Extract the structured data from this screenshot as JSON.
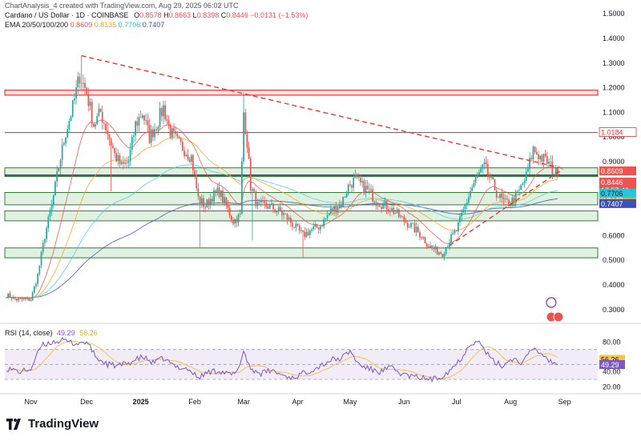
{
  "header": {
    "credit": "ChartAnalysis_4 created with TradingView.com, Aug 29, 2025 06:02 UTC",
    "symbol": "Cardano / US Dollar · 1D · COINBASE",
    "ohlc": {
      "open_label": "O",
      "open": "0.8578",
      "high_label": "H",
      "high": "0.8663",
      "low_label": "L",
      "low": "0.8398",
      "close_label": "C",
      "close": "0.8446",
      "change": "−0.0131 (−1.53%)"
    },
    "ema_label": "EMA 20/50/100/200",
    "ema_values": [
      "0.8609",
      "0.8135",
      "0.7706",
      "0.7407"
    ]
  },
  "brand": {
    "name": "TradingView"
  },
  "colors": {
    "up": "#26a69a",
    "down": "#ef5350",
    "ema20": "#ef5350",
    "ema50": "#f5a623",
    "ema100": "#4dd0e1",
    "ema200": "#3f51b5",
    "rsi": "#7e57c2",
    "rsi_ma": "#f5c542",
    "zone_fill": "#c8e6c9",
    "zone_line": "#2e7d32",
    "resistance": "#e53935"
  },
  "chart_data": [
    {
      "type": "candlestick",
      "title": "Cardano / US Dollar · 1D · COINBASE",
      "ylim": [
        0.27,
        1.53
      ],
      "y_ticks": [
        {
          "value": 1.5,
          "label": "1.5000"
        },
        {
          "value": 1.4,
          "label": "1.4000"
        },
        {
          "value": 1.3,
          "label": "1.3000"
        },
        {
          "value": 1.2,
          "label": "1.2000"
        },
        {
          "value": 1.1,
          "label": "1.1000"
        },
        {
          "value": 1.0,
          "label": "1.0000"
        },
        {
          "value": 0.9,
          "label": "0.9000"
        },
        {
          "value": 0.6,
          "label": "0.6000"
        },
        {
          "value": 0.5,
          "label": "0.5000"
        },
        {
          "value": 0.4,
          "label": "0.4000"
        },
        {
          "value": 0.3,
          "label": "0.3000"
        }
      ],
      "x_ticks": [
        {
          "day": 14,
          "label": "Nov",
          "bold": false
        },
        {
          "day": 46,
          "label": "Dec",
          "bold": false
        },
        {
          "day": 77,
          "label": "2025",
          "bold": true
        },
        {
          "day": 108,
          "label": "Feb",
          "bold": false
        },
        {
          "day": 136,
          "label": "Mar",
          "bold": false
        },
        {
          "day": 167,
          "label": "Apr",
          "bold": false
        },
        {
          "day": 197,
          "label": "May",
          "bold": false
        },
        {
          "day": 228,
          "label": "Jun",
          "bold": false
        },
        {
          "day": 258,
          "label": "Jul",
          "bold": false
        },
        {
          "day": 289,
          "label": "Aug",
          "bold": false
        },
        {
          "day": 320,
          "label": "Sep",
          "bold": false
        }
      ],
      "keypoints": [
        [
          0,
          0.36
        ],
        [
          6,
          0.34
        ],
        [
          14,
          0.34
        ],
        [
          18,
          0.44
        ],
        [
          22,
          0.6
        ],
        [
          26,
          0.72
        ],
        [
          30,
          0.88
        ],
        [
          34,
          1.02
        ],
        [
          38,
          1.12
        ],
        [
          42,
          1.25
        ],
        [
          46,
          1.18
        ],
        [
          50,
          1.05
        ],
        [
          54,
          1.1
        ],
        [
          58,
          1.02
        ],
        [
          62,
          0.93
        ],
        [
          66,
          0.88
        ],
        [
          70,
          0.9
        ],
        [
          74,
          1.05
        ],
        [
          78,
          1.1
        ],
        [
          82,
          1.0
        ],
        [
          86,
          1.05
        ],
        [
          90,
          1.12
        ],
        [
          94,
          1.02
        ],
        [
          98,
          0.98
        ],
        [
          102,
          0.95
        ],
        [
          106,
          0.92
        ],
        [
          110,
          0.75
        ],
        [
          114,
          0.72
        ],
        [
          118,
          0.76
        ],
        [
          122,
          0.78
        ],
        [
          126,
          0.72
        ],
        [
          130,
          0.66
        ],
        [
          134,
          0.68
        ],
        [
          136,
          1.1
        ],
        [
          138,
          0.98
        ],
        [
          140,
          0.8
        ],
        [
          144,
          0.72
        ],
        [
          150,
          0.72
        ],
        [
          156,
          0.7
        ],
        [
          160,
          0.68
        ],
        [
          166,
          0.63
        ],
        [
          170,
          0.6
        ],
        [
          174,
          0.62
        ],
        [
          180,
          0.64
        ],
        [
          186,
          0.7
        ],
        [
          192,
          0.73
        ],
        [
          196,
          0.8
        ],
        [
          200,
          0.83
        ],
        [
          204,
          0.8
        ],
        [
          208,
          0.78
        ],
        [
          212,
          0.74
        ],
        [
          218,
          0.72
        ],
        [
          222,
          0.7
        ],
        [
          228,
          0.66
        ],
        [
          232,
          0.64
        ],
        [
          238,
          0.6
        ],
        [
          242,
          0.56
        ],
        [
          246,
          0.54
        ],
        [
          250,
          0.53
        ],
        [
          254,
          0.58
        ],
        [
          258,
          0.62
        ],
        [
          262,
          0.7
        ],
        [
          266,
          0.78
        ],
        [
          270,
          0.84
        ],
        [
          274,
          0.88
        ],
        [
          278,
          0.82
        ],
        [
          282,
          0.76
        ],
        [
          286,
          0.73
        ],
        [
          290,
          0.74
        ],
        [
          294,
          0.78
        ],
        [
          298,
          0.84
        ],
        [
          302,
          0.95
        ],
        [
          306,
          0.92
        ],
        [
          310,
          0.9
        ],
        [
          314,
          0.86
        ],
        [
          316,
          0.8446
        ]
      ],
      "last_day": 316,
      "zones": [
        {
          "low": 1.17,
          "high": 1.19,
          "kind": "resistance"
        },
        {
          "low": 0.84,
          "high": 0.875,
          "kind": "support"
        },
        {
          "low": 0.725,
          "high": 0.775,
          "kind": "support"
        },
        {
          "low": 0.66,
          "high": 0.7,
          "kind": "support"
        },
        {
          "low": 0.51,
          "high": 0.55,
          "kind": "support"
        }
      ],
      "lines": [
        {
          "value": 1.0184,
          "kind": "resistance"
        },
        {
          "value": 0.845,
          "kind": "current"
        }
      ],
      "trendlines": [
        {
          "from": [
            43,
            1.33
          ],
          "to": [
            319,
            0.873
          ],
          "kind": "descending"
        },
        {
          "from": [
            254,
            0.56
          ],
          "to": [
            319,
            0.87
          ],
          "kind": "ascending"
        }
      ],
      "price_labels": [
        {
          "value": 1.0184,
          "label": "1.0184",
          "style": "resistance"
        },
        {
          "value": 0.8609,
          "label": "0.8609",
          "style": "ema20"
        },
        {
          "value": 0.8446,
          "label": "0.8446",
          "style": "price"
        },
        {
          "value": 0.8446,
          "label": "17:57:40",
          "style": "countdown"
        },
        {
          "value": 0.8135,
          "label": "0.8135",
          "style": "ema50"
        },
        {
          "value": 0.7706,
          "label": "0.7706",
          "style": "ema100"
        },
        {
          "value": 0.7407,
          "label": "0.7407",
          "style": "ema200"
        }
      ]
    },
    {
      "type": "line",
      "title": "RSI (14, close)",
      "values_shown": [
        "49.29",
        "56.26"
      ],
      "ylim": [
        15,
        90
      ],
      "band": [
        30,
        70
      ],
      "y_ticks": [
        {
          "value": 80,
          "label": "80.00"
        },
        {
          "value": 40,
          "label": "40.00"
        },
        {
          "value": 20,
          "label": "20.00"
        }
      ],
      "rsi_keypoints": [
        [
          0,
          45
        ],
        [
          8,
          40
        ],
        [
          14,
          44
        ],
        [
          20,
          75
        ],
        [
          26,
          80
        ],
        [
          32,
          82
        ],
        [
          40,
          78
        ],
        [
          46,
          80
        ],
        [
          52,
          58
        ],
        [
          58,
          50
        ],
        [
          64,
          48
        ],
        [
          70,
          52
        ],
        [
          78,
          60
        ],
        [
          84,
          52
        ],
        [
          90,
          58
        ],
        [
          96,
          48
        ],
        [
          104,
          44
        ],
        [
          110,
          32
        ],
        [
          116,
          40
        ],
        [
          122,
          42
        ],
        [
          128,
          36
        ],
        [
          132,
          38
        ],
        [
          136,
          68
        ],
        [
          140,
          44
        ],
        [
          146,
          38
        ],
        [
          152,
          42
        ],
        [
          158,
          36
        ],
        [
          164,
          32
        ],
        [
          170,
          38
        ],
        [
          178,
          46
        ],
        [
          186,
          56
        ],
        [
          192,
          58
        ],
        [
          197,
          68
        ],
        [
          202,
          50
        ],
        [
          208,
          44
        ],
        [
          214,
          40
        ],
        [
          220,
          46
        ],
        [
          226,
          38
        ],
        [
          232,
          34
        ],
        [
          238,
          32
        ],
        [
          244,
          30
        ],
        [
          248,
          32
        ],
        [
          254,
          42
        ],
        [
          260,
          56
        ],
        [
          266,
          78
        ],
        [
          270,
          82
        ],
        [
          274,
          70
        ],
        [
          278,
          56
        ],
        [
          284,
          48
        ],
        [
          290,
          58
        ],
        [
          296,
          52
        ],
        [
          302,
          72
        ],
        [
          308,
          62
        ],
        [
          312,
          54
        ],
        [
          316,
          49.29
        ]
      ],
      "rsi_labels": [
        {
          "value": 56.26,
          "label": "56.26",
          "style": "rsi_ma"
        },
        {
          "value": 49.29,
          "label": "49.29",
          "style": "rsi"
        }
      ]
    }
  ]
}
